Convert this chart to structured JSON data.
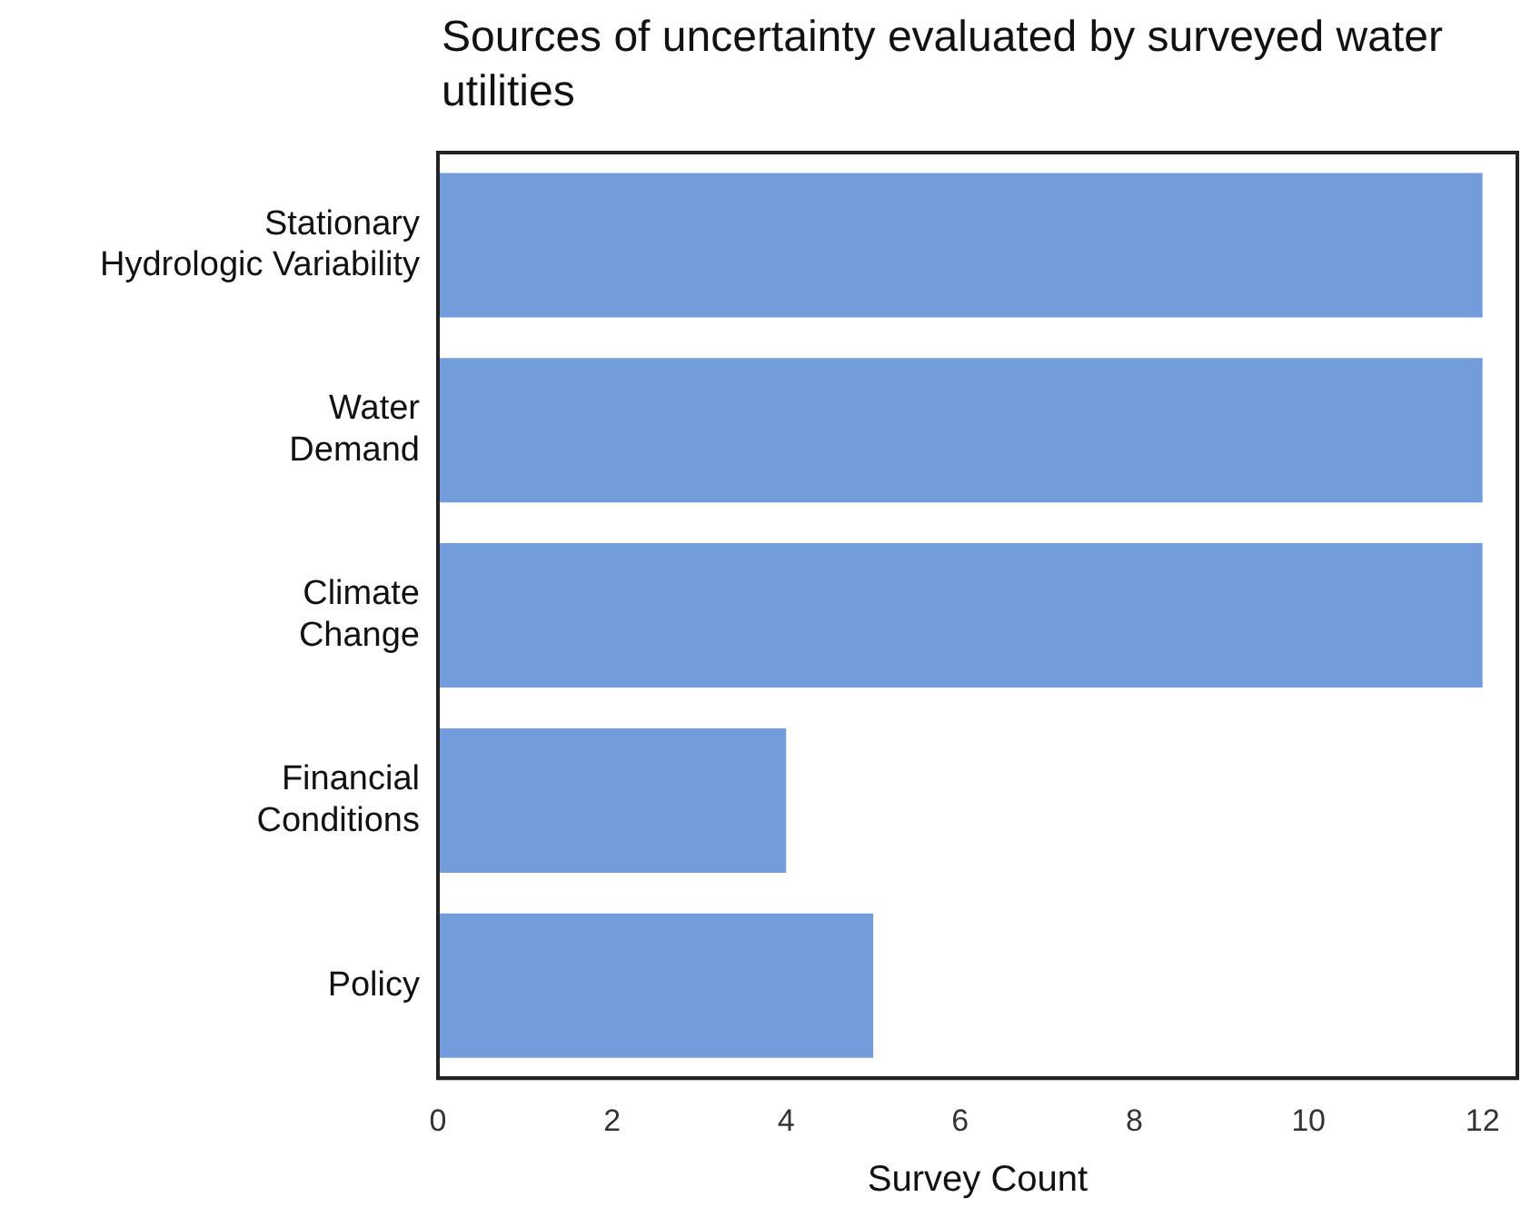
{
  "chart_data": {
    "type": "bar",
    "orientation": "horizontal",
    "title": "Sources of uncertainty evaluated by surveyed water utilities",
    "xlabel": "Survey Count",
    "categories": [
      "Stationary\nHydrologic Variability",
      "Water\nDemand",
      "Climate\nChange",
      "Financial\nConditions",
      "Policy"
    ],
    "values": [
      12,
      12,
      12,
      4,
      5
    ],
    "color": "#739cdc",
    "xlim": [
      0,
      12.4
    ],
    "xticks": [
      0,
      2,
      4,
      6,
      8,
      10,
      12
    ],
    "grid": false,
    "legend": false
  }
}
